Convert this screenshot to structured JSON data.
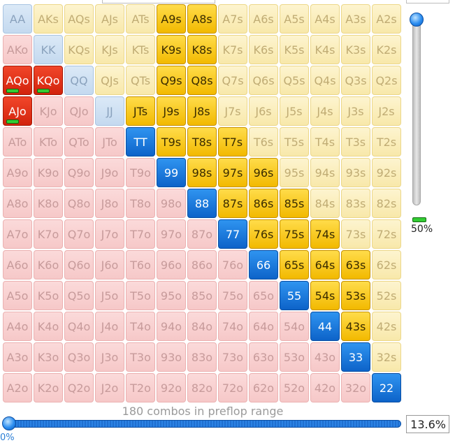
{
  "grid": {
    "rows": [
      [
        "AA",
        "AKs",
        "AQs",
        "AJs",
        "ATs",
        "A9s",
        "A8s",
        "A7s",
        "A6s",
        "A5s",
        "A4s",
        "A3s",
        "A2s"
      ],
      [
        "AKo",
        "KK",
        "KQs",
        "KJs",
        "KTs",
        "K9s",
        "K8s",
        "K7s",
        "K6s",
        "K5s",
        "K4s",
        "K3s",
        "K2s"
      ],
      [
        "AQo",
        "KQo",
        "QQ",
        "QJs",
        "QTs",
        "Q9s",
        "Q8s",
        "Q7s",
        "Q6s",
        "Q5s",
        "Q4s",
        "Q3s",
        "Q2s"
      ],
      [
        "AJo",
        "KJo",
        "QJo",
        "JJ",
        "JTs",
        "J9s",
        "J8s",
        "J7s",
        "J6s",
        "J5s",
        "J4s",
        "J3s",
        "J2s"
      ],
      [
        "ATo",
        "KTo",
        "QTo",
        "JTo",
        "TT",
        "T9s",
        "T8s",
        "T7s",
        "T6s",
        "T5s",
        "T4s",
        "T3s",
        "T2s"
      ],
      [
        "A9o",
        "K9o",
        "Q9o",
        "J9o",
        "T9o",
        "99",
        "98s",
        "97s",
        "96s",
        "95s",
        "94s",
        "93s",
        "92s"
      ],
      [
        "A8o",
        "K8o",
        "Q8o",
        "J8o",
        "T8o",
        "98o",
        "88",
        "87s",
        "86s",
        "85s",
        "84s",
        "83s",
        "82s"
      ],
      [
        "A7o",
        "K7o",
        "Q7o",
        "J7o",
        "T7o",
        "97o",
        "87o",
        "77",
        "76s",
        "75s",
        "74s",
        "73s",
        "72s"
      ],
      [
        "A6o",
        "K6o",
        "Q6o",
        "J6o",
        "T6o",
        "96o",
        "86o",
        "76o",
        "66",
        "65s",
        "64s",
        "63s",
        "62s"
      ],
      [
        "A5o",
        "K5o",
        "Q5o",
        "J5o",
        "T5o",
        "95o",
        "85o",
        "75o",
        "65o",
        "55",
        "54s",
        "53s",
        "52s"
      ],
      [
        "A4o",
        "K4o",
        "Q4o",
        "J4o",
        "T4o",
        "94o",
        "84o",
        "74o",
        "64o",
        "54o",
        "44",
        "43s",
        "42s"
      ],
      [
        "A3o",
        "K3o",
        "Q3o",
        "J3o",
        "T3o",
        "93o",
        "83o",
        "73o",
        "63o",
        "53o",
        "43o",
        "33",
        "32s"
      ],
      [
        "A2o",
        "K2o",
        "Q2o",
        "J2o",
        "T2o",
        "92o",
        "82o",
        "72o",
        "62o",
        "52o",
        "42o",
        "32o",
        "22"
      ]
    ],
    "selected": [
      "A9s",
      "A8s",
      "K9s",
      "K8s",
      "Q9s",
      "Q8s",
      "JTs",
      "J9s",
      "J8s",
      "TT",
      "T9s",
      "T8s",
      "T7s",
      "99",
      "98s",
      "97s",
      "96s",
      "88",
      "87s",
      "86s",
      "85s",
      "77",
      "76s",
      "75s",
      "74s",
      "66",
      "65s",
      "64s",
      "63s",
      "55",
      "54s",
      "53s",
      "44",
      "43s",
      "33",
      "22",
      "AQo",
      "KQo",
      "AJo"
    ],
    "partial": [
      "AQo",
      "KQo",
      "AJo"
    ]
  },
  "vertical_slider": {
    "percent_label": "50%",
    "value_fraction": 1.0
  },
  "range": {
    "caption": "180 combos in preflop range",
    "percent": "13.6%",
    "min_label": "0%",
    "slider_fraction": 0.0
  },
  "colors": {
    "suited_selected": "#f2b900",
    "pair_selected": "#0d63c9",
    "offsuit_selected": "#d2230c",
    "suited_unselected": "#f8e8aa",
    "pair_unselected": "#c4d9ef",
    "offsuit_unselected": "#f6c8c8",
    "partial_bar": "#33cc33"
  }
}
